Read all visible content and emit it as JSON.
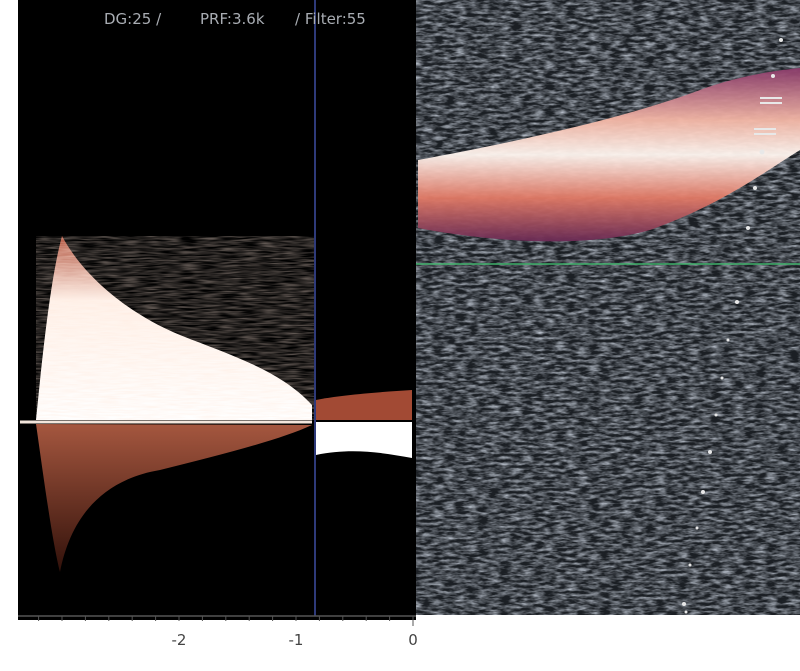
{
  "header": {
    "items": [
      "DG:25 /",
      "PRF:3.6k",
      "/ Filter:55"
    ]
  },
  "axis": {
    "labels": [
      -2,
      -1,
      0
    ]
  }
}
